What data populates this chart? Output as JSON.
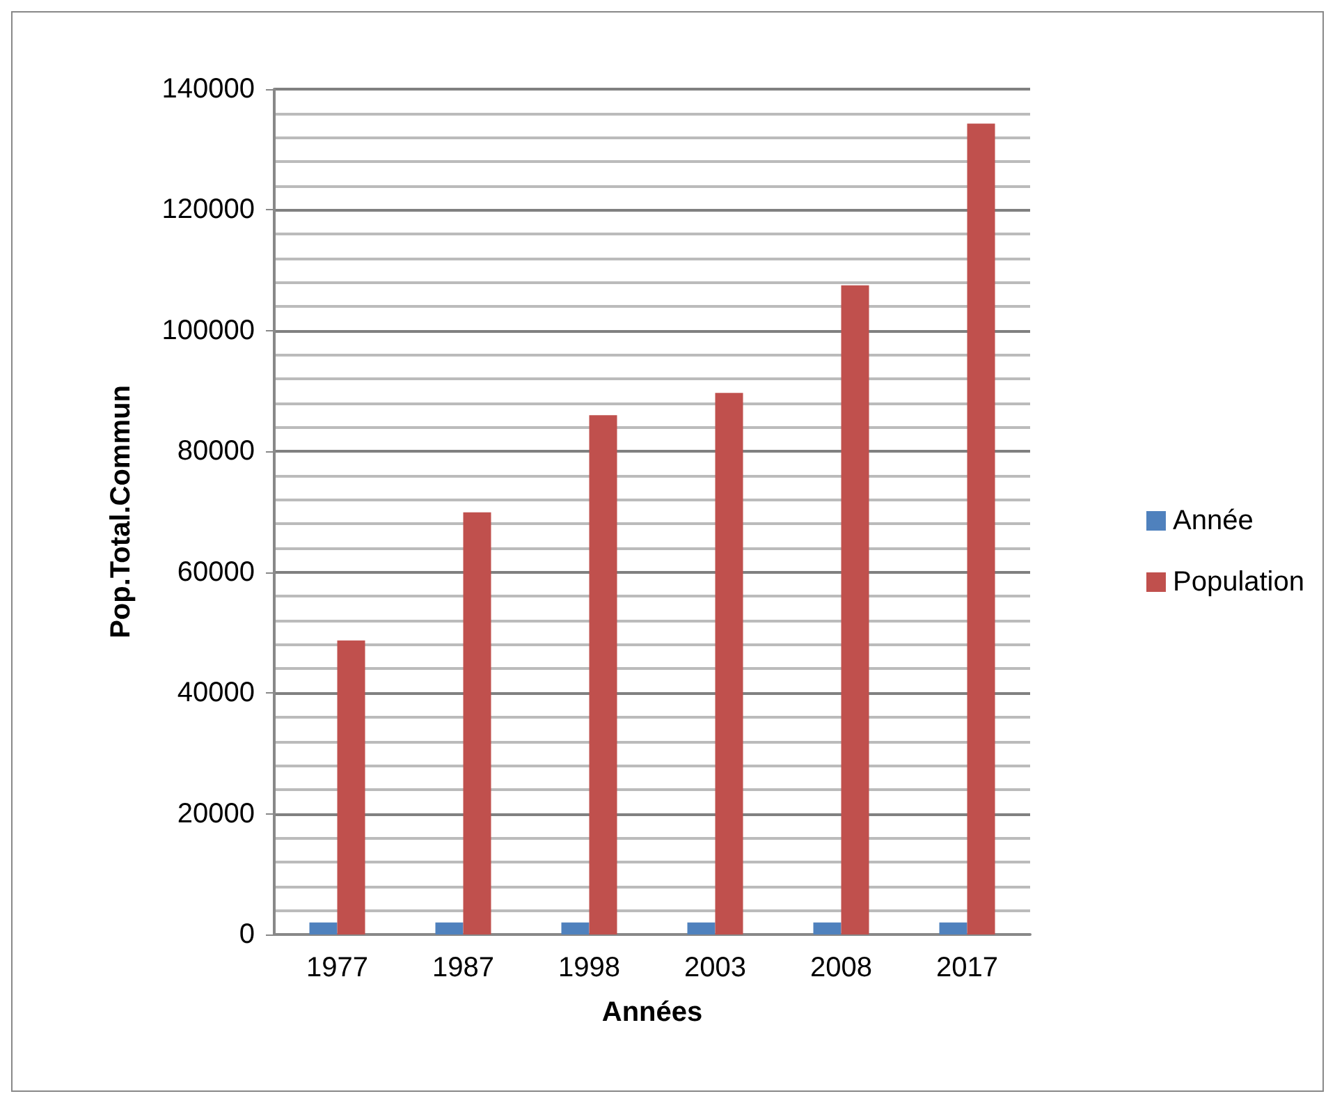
{
  "chart_data": {
    "type": "bar",
    "xlabel": "Années",
    "ylabel": "Pop.Total.Commun",
    "categories": [
      "1977",
      "1987",
      "1998",
      "2003",
      "2008",
      "2017"
    ],
    "series": [
      {
        "name": "Année",
        "color": "#4f81bd",
        "values": [
          2000,
          2000,
          2000,
          2000,
          2000,
          2000
        ]
      },
      {
        "name": "Population",
        "color": "#c0504d",
        "values": [
          48700,
          69900,
          86000,
          89700,
          107500,
          134300
        ]
      }
    ],
    "ylim": [
      0,
      140000
    ],
    "yticks": [
      0,
      20000,
      40000,
      60000,
      80000,
      100000,
      120000,
      140000
    ],
    "grid": "y",
    "legend": "right"
  }
}
